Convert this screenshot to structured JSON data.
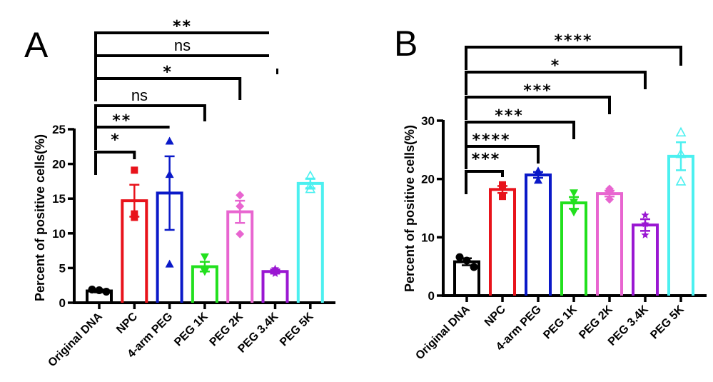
{
  "chart_data": [
    {
      "panel": "A",
      "type": "bar",
      "ylabel": "Percent of positive cells(%)",
      "xlabel": "",
      "ylim": [
        0,
        25
      ],
      "yticks": [
        0,
        5,
        10,
        15,
        20,
        25
      ],
      "categories": [
        "Original DNA",
        "NPC",
        "4-arm PEG",
        "PEG 1K",
        "PEG 2K",
        "PEG 3.4K",
        "PEG 5K"
      ],
      "colors": [
        "#000000",
        "#e8131b",
        "#0a19c8",
        "#22e01e",
        "#e865d0",
        "#9a17d2",
        "#4cf0f0"
      ],
      "markers": [
        "circle",
        "square",
        "triangle-up",
        "triangle-down",
        "diamond",
        "star",
        "triangle-open"
      ],
      "values": [
        1.7,
        14.7,
        15.8,
        5.2,
        13.1,
        4.5,
        17.2
      ],
      "errors": [
        0.2,
        2.3,
        5.3,
        0.7,
        1.6,
        0.3,
        0.7
      ],
      "points": [
        [
          1.9,
          1.8,
          1.6
        ],
        [
          19.1,
          12.8,
          12.3
        ],
        [
          23.3,
          18.5,
          5.6
        ],
        [
          6.6,
          4.5,
          4.5
        ],
        [
          15.5,
          13.9,
          9.9
        ],
        [
          4.9,
          4.3,
          4.2
        ],
        [
          18.3,
          16.9,
          16.4
        ]
      ],
      "comparisons": [
        {
          "from": "Original DNA",
          "to": "NPC",
          "label": "*"
        },
        {
          "from": "Original DNA",
          "to": "4-arm PEG",
          "label": "**"
        },
        {
          "from": "Original DNA",
          "to": "PEG 1K",
          "label": "ns"
        },
        {
          "from": "Original DNA",
          "to": "PEG 2K",
          "label": "*"
        },
        {
          "from": "Original DNA",
          "to": "PEG 3.4K",
          "label": "ns"
        },
        {
          "from": "Original DNA",
          "to": "PEG 5K",
          "label": "**"
        }
      ]
    },
    {
      "panel": "B",
      "type": "bar",
      "ylabel": "Percent of positive cells(%)",
      "xlabel": "",
      "ylim": [
        0,
        30
      ],
      "yticks": [
        0,
        10,
        20,
        30
      ],
      "categories": [
        "Original DNA",
        "NPC",
        "4-arm PEG",
        "PEG 1K",
        "PEG 2K",
        "PEG 3.4K",
        "PEG 5K"
      ],
      "colors": [
        "#000000",
        "#e8131b",
        "#0a19c8",
        "#22e01e",
        "#e865d0",
        "#9a17d2",
        "#4cf0f0"
      ],
      "markers": [
        "circle",
        "square",
        "triangle-up",
        "triangle-down",
        "diamond",
        "star",
        "triangle-open"
      ],
      "values": [
        5.8,
        18.2,
        20.7,
        15.9,
        17.5,
        12.1,
        23.9
      ],
      "errors": [
        0.6,
        0.6,
        0.5,
        1.0,
        0.5,
        1.0,
        2.4
      ],
      "points": [
        [
          6.6,
          6.0,
          4.9
        ],
        [
          19.0,
          18.7,
          17.0
        ],
        [
          21.4,
          21.2,
          19.8
        ],
        [
          17.6,
          16.0,
          14.3
        ],
        [
          18.3,
          17.8,
          16.5
        ],
        [
          13.8,
          12.3,
          10.4
        ],
        [
          28.0,
          24.3,
          19.6
        ]
      ],
      "comparisons": [
        {
          "from": "Original DNA",
          "to": "NPC",
          "label": "***"
        },
        {
          "from": "Original DNA",
          "to": "4-arm PEG",
          "label": "****"
        },
        {
          "from": "Original DNA",
          "to": "PEG 1K",
          "label": "***"
        },
        {
          "from": "Original DNA",
          "to": "PEG 2K",
          "label": "***"
        },
        {
          "from": "Original DNA",
          "to": "PEG 3.4K",
          "label": "*"
        },
        {
          "from": "Original DNA",
          "to": "PEG 5K",
          "label": "****"
        }
      ]
    }
  ]
}
